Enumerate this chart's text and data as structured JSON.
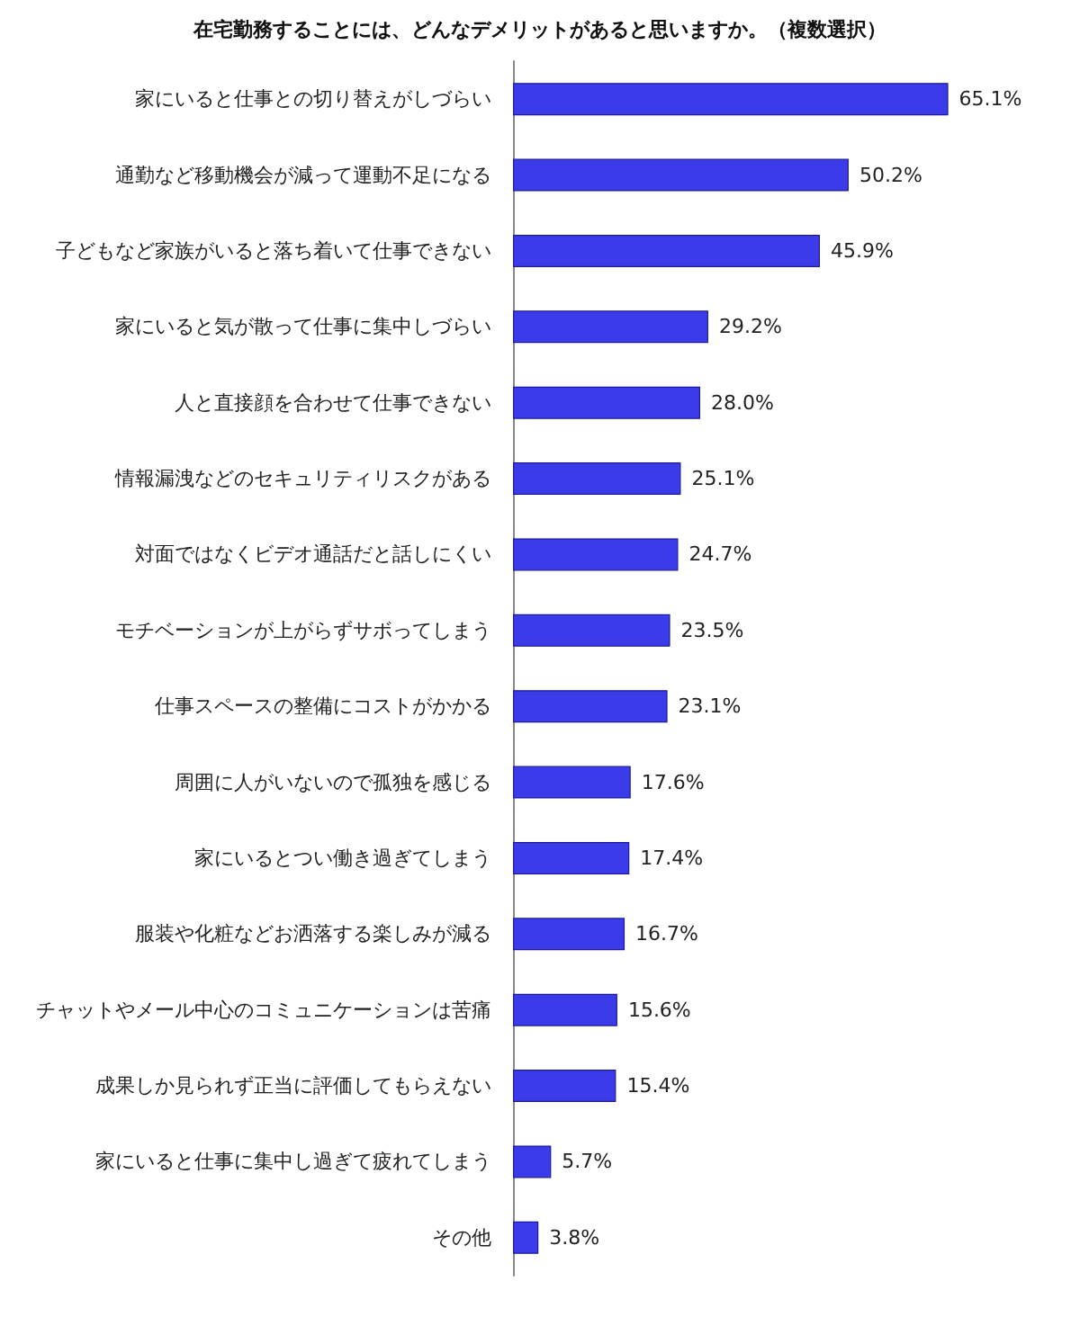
{
  "chart_data": {
    "type": "bar",
    "orientation": "horizontal",
    "title": "在宅勤務することには、どんなデメリットがあると思いますか。（複数選択）",
    "categories": [
      "家にいると仕事との切り替えがしづらい",
      "通勤など移動機会が減って運動不足になる",
      "子どもなど家族がいると落ち着いて仕事できない",
      "家にいると気が散って仕事に集中しづらい",
      "人と直接顔を合わせて仕事できない",
      "情報漏洩などのセキュリティリスクがある",
      "対面ではなくビデオ通話だと話しにくい",
      "モチベーションが上がらずサボってしまう",
      "仕事スペースの整備にコストがかかる",
      "周囲に人がいないので孤独を感じる",
      "家にいるとつい働き過ぎてしまう",
      "服装や化粧などお洒落する楽しみが減る",
      "チャットやメール中心のコミュニケーションは苦痛",
      "成果しか見られず正当に評価してもらえない",
      "家にいると仕事に集中し過ぎて疲れてしまう",
      "その他"
    ],
    "values": [
      65.1,
      50.2,
      45.9,
      29.2,
      28.0,
      25.1,
      24.7,
      23.5,
      23.1,
      17.6,
      17.4,
      16.7,
      15.6,
      15.4,
      5.7,
      3.8
    ],
    "value_labels": [
      "65.1%",
      "50.2%",
      "45.9%",
      "29.2%",
      "28.0%",
      "25.1%",
      "24.7%",
      "23.5%",
      "23.1%",
      "17.6%",
      "17.4%",
      "16.7%",
      "15.6%",
      "15.4%",
      "5.7%",
      "3.8%"
    ],
    "color": "#3b3bea"
  }
}
